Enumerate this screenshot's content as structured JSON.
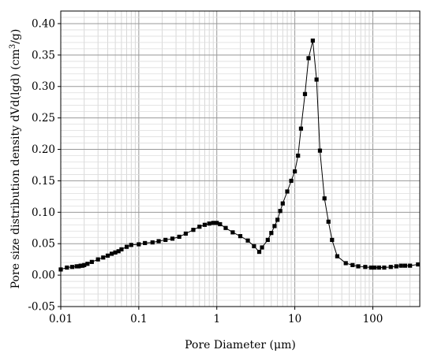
{
  "chart_data": {
    "type": "line",
    "title": "",
    "xlabel": "Pore Diameter (μm)",
    "ylabel": "Pore size distribution density dVd(lgd) (cm³/g)",
    "xscale": "log",
    "xlim": [
      0.01,
      400
    ],
    "ylim": [
      -0.05,
      0.42
    ],
    "x_ticks": [
      0.01,
      0.1,
      1,
      10,
      100
    ],
    "x_tick_labels": [
      "0.01",
      "0.1",
      "1",
      "10",
      "100"
    ],
    "y_ticks": [
      -0.05,
      0.0,
      0.05,
      0.1,
      0.15,
      0.2,
      0.25,
      0.3,
      0.35,
      0.4
    ],
    "y_tick_labels": [
      "-0.05",
      "0.00",
      "0.05",
      "0.10",
      "0.15",
      "0.20",
      "0.25",
      "0.30",
      "0.35",
      "0.40"
    ],
    "grid": true,
    "marker": "square",
    "line_color": "#000000",
    "series": [
      {
        "x": [
          0.01,
          0.012,
          0.014,
          0.016,
          0.017,
          0.018,
          0.019,
          0.02,
          0.022,
          0.025,
          0.03,
          0.035,
          0.04,
          0.045,
          0.05,
          0.055,
          0.06,
          0.07,
          0.08,
          0.1,
          0.12,
          0.15,
          0.18,
          0.22,
          0.27,
          0.33,
          0.4,
          0.5,
          0.6,
          0.7,
          0.8,
          0.9,
          1.0,
          1.1,
          1.3,
          1.6,
          2.0,
          2.5,
          3.0,
          3.5,
          3.8,
          4.5,
          5.0,
          5.5,
          6.0,
          6.5,
          7.0,
          8.0,
          9.0,
          10.0,
          11.0,
          12.0,
          13.5,
          15.0,
          17.0,
          19.0,
          21.0,
          24.0,
          27.0,
          30.0,
          35.0,
          45.0,
          55.0,
          65.0,
          80.0,
          95.0,
          105.0,
          120.0,
          140.0,
          170.0,
          200.0,
          230.0,
          260.0,
          300.0,
          380.0
        ],
        "y": [
          0.009,
          0.012,
          0.013,
          0.014,
          0.014,
          0.015,
          0.015,
          0.016,
          0.018,
          0.021,
          0.025,
          0.028,
          0.031,
          0.034,
          0.036,
          0.038,
          0.041,
          0.045,
          0.048,
          0.049,
          0.051,
          0.052,
          0.054,
          0.056,
          0.058,
          0.061,
          0.066,
          0.072,
          0.077,
          0.08,
          0.082,
          0.083,
          0.083,
          0.081,
          0.075,
          0.068,
          0.062,
          0.055,
          0.046,
          0.037,
          0.044,
          0.056,
          0.067,
          0.078,
          0.088,
          0.102,
          0.114,
          0.133,
          0.15,
          0.165,
          0.19,
          0.233,
          0.288,
          0.345,
          0.373,
          0.311,
          0.198,
          0.122,
          0.085,
          0.056,
          0.03,
          0.019,
          0.016,
          0.014,
          0.013,
          0.012,
          0.012,
          0.012,
          0.012,
          0.013,
          0.014,
          0.015,
          0.015,
          0.015,
          0.017
        ]
      }
    ]
  }
}
